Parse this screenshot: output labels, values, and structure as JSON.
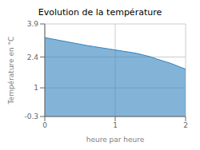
{
  "chart_data": {
    "type": "area",
    "title": "Evolution de la température",
    "xlabel": "heure par heure",
    "ylabel": "Température en °C",
    "x": [
      0,
      0.1,
      0.2,
      0.3,
      0.4,
      0.5,
      0.6,
      0.7,
      0.8,
      0.9,
      1.0,
      1.1,
      1.2,
      1.3,
      1.4,
      1.5,
      1.6,
      1.7,
      1.8,
      1.9,
      2.0
    ],
    "values": [
      3.28,
      3.22,
      3.16,
      3.1,
      3.04,
      2.98,
      2.92,
      2.87,
      2.82,
      2.77,
      2.72,
      2.67,
      2.62,
      2.57,
      2.49,
      2.41,
      2.3,
      2.2,
      2.1,
      1.97,
      1.85
    ],
    "xlim": [
      0,
      2
    ],
    "ylim": [
      -0.3,
      3.9
    ],
    "xticks": [
      0,
      1,
      2
    ],
    "yticks": [
      -0.3,
      1.0,
      2.4,
      3.9
    ],
    "grid": true
  }
}
